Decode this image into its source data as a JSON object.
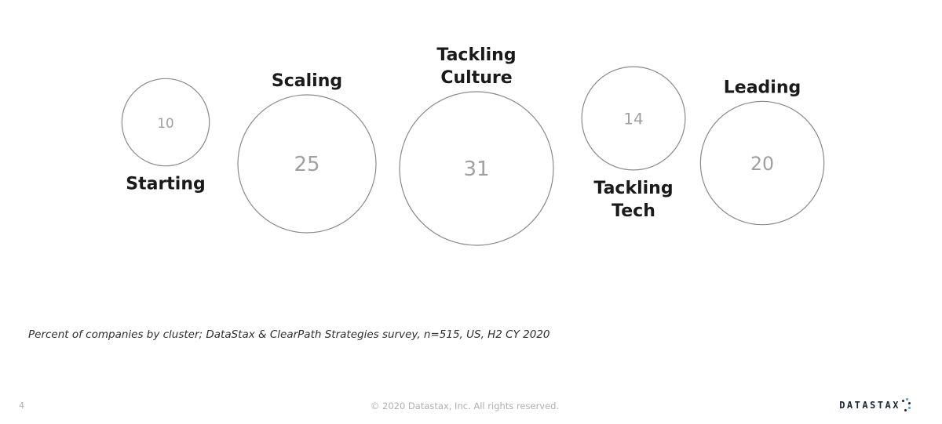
{
  "chart_data": {
    "type": "bubble",
    "title": "",
    "xlabel": "",
    "ylabel": "",
    "categories": [
      "Starting",
      "Scaling",
      "Tackling Culture",
      "Tackling Tech",
      "Leading"
    ],
    "values": [
      10,
      25,
      31,
      14,
      20
    ],
    "label_lines": [
      [
        "Starting"
      ],
      [
        "Scaling"
      ],
      [
        "Tackling",
        "Culture"
      ],
      [
        "Tackling",
        "Tech"
      ],
      [
        "Leading"
      ]
    ],
    "label_positions": [
      "below",
      "above",
      "above",
      "below",
      "above"
    ],
    "grid": false,
    "legend": "none"
  },
  "note": "Percent of companies by cluster; DataStax & ClearPath Strategies survey, n=515, US, H2 CY 2020",
  "footer": {
    "page_number": "4",
    "copyright": "© 2020 Datastax, Inc. All rights reserved.",
    "logo_text": "DATASTAX"
  },
  "colors": {
    "bubble_stroke": "#8a8a8a",
    "value_text": "#a0a0a0",
    "label_text": "#1a1a1a",
    "logo_dark": "#1d2733",
    "logo_accent": "#3aa5d8"
  }
}
